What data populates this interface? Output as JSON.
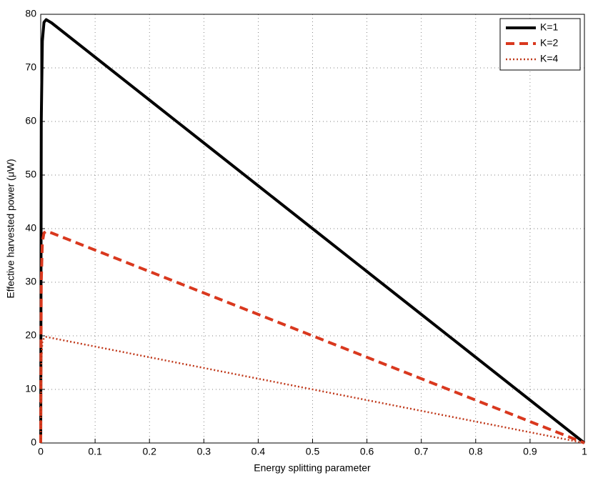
{
  "chart_data": {
    "type": "line",
    "xlabel": "Energy splitting parameter",
    "ylabel": "Effective harvested power (μW)",
    "x": [
      0,
      0.001,
      0.003,
      0.006,
      0.01,
      0.02,
      0.1,
      0.2,
      0.3,
      0.4,
      0.5,
      0.6,
      0.7,
      0.8,
      0.9,
      1
    ],
    "series": [
      {
        "name": "K=1",
        "color": "#000000",
        "dash": "solid",
        "values": [
          0,
          60,
          75,
          78.5,
          79,
          78.4,
          72,
          64,
          56,
          48,
          40,
          32,
          24,
          16,
          8,
          0
        ]
      },
      {
        "name": "K=2",
        "color": "#d9381e",
        "dash": "dashed",
        "values": [
          0,
          30,
          37.5,
          39.2,
          39.5,
          39.2,
          36,
          32,
          28,
          24,
          20,
          16,
          12,
          8,
          4,
          0
        ]
      },
      {
        "name": "K=4",
        "color": "#c0391b",
        "dash": "dotted",
        "values": [
          0,
          15,
          18.8,
          19.6,
          19.8,
          19.6,
          18,
          16,
          14,
          12,
          10,
          8,
          6,
          4,
          2,
          0
        ]
      }
    ],
    "xlim": [
      0,
      1
    ],
    "xticks": [
      0,
      0.1,
      0.2,
      0.3,
      0.4,
      0.5,
      0.6,
      0.7,
      0.8,
      0.9,
      1
    ],
    "ylim": [
      0,
      80
    ],
    "yticks": [
      0,
      10,
      20,
      30,
      40,
      50,
      60,
      70,
      80
    ],
    "grid": true,
    "legend": "top-right"
  }
}
